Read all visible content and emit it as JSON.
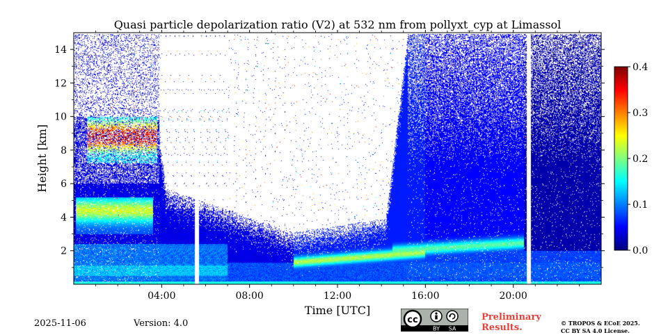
{
  "chart_data": {
    "type": "heatmap",
    "title": "Quasi particle depolarization ratio (V2) at 532 nm from pollyxt_cyp at Limassol",
    "xlabel": "Time [UTC]",
    "ylabel": "Height [km]",
    "xlim_hours": [
      0,
      24
    ],
    "ylim_km": [
      0,
      15
    ],
    "x_ticks": [
      {
        "value": 4,
        "label": "04:00"
      },
      {
        "value": 8,
        "label": "08:00"
      },
      {
        "value": 12,
        "label": "12:00"
      },
      {
        "value": 16,
        "label": "16:00"
      },
      {
        "value": 20,
        "label": "20:00"
      }
    ],
    "y_ticks": [
      {
        "value": 2,
        "label": "2"
      },
      {
        "value": 4,
        "label": "4"
      },
      {
        "value": 6,
        "label": "6"
      },
      {
        "value": 8,
        "label": "8"
      },
      {
        "value": 10,
        "label": "10"
      },
      {
        "value": 12,
        "label": "12"
      },
      {
        "value": 14,
        "label": "14"
      }
    ],
    "colorbar": {
      "range": [
        0.0,
        0.4
      ],
      "ticks": [
        {
          "value": 0.0,
          "label": "0.0"
        },
        {
          "value": 0.1,
          "label": "0.1"
        },
        {
          "value": 0.2,
          "label": "0.2"
        },
        {
          "value": 0.3,
          "label": "0.3"
        },
        {
          "value": 0.4,
          "label": "0.4"
        }
      ],
      "colormap": "jet"
    },
    "features": [
      {
        "name": "upper aerosol layer",
        "start_h": 0.6,
        "end_h": 3.8,
        "bottom_km": 7.2,
        "top_km": 10.0,
        "value": 0.3
      },
      {
        "name": "mid aerosol layer",
        "start_h": 0.1,
        "end_h": 3.6,
        "bottom_km": 3.0,
        "top_km": 5.2,
        "value": 0.18
      },
      {
        "name": "boundary layer morning",
        "start_h": 0.0,
        "end_h": 6.0,
        "bottom_km": 0.3,
        "top_km": 2.5,
        "value": 0.09
      },
      {
        "name": "midday layer",
        "start_h": 10.0,
        "end_h": 16.0,
        "bottom_km": 1.0,
        "top_km": 1.9,
        "value": 0.19
      },
      {
        "name": "evening elevated layer",
        "start_h": 14.5,
        "end_h": 20.5,
        "bottom_km": 2.0,
        "top_km": 3.0,
        "value": 0.16
      },
      {
        "name": "night background",
        "start_h": 15.2,
        "end_h": 24.0,
        "bottom_km": 0.0,
        "top_km": 15.0,
        "value": 0.01
      }
    ],
    "data_gaps_h": [
      5.6,
      20.7
    ]
  },
  "footer": {
    "date": "2025-11-06",
    "version": "Version: 4.0",
    "preliminary_line1": "Preliminary",
    "preliminary_line2": "Results.",
    "copyright_line1": "© TROPOS & ECoE 2025.",
    "copyright_line2": "CC BY SA 4.0 License.",
    "badge_by": "BY",
    "badge_sa": "SA",
    "badge_cc": "cc"
  }
}
